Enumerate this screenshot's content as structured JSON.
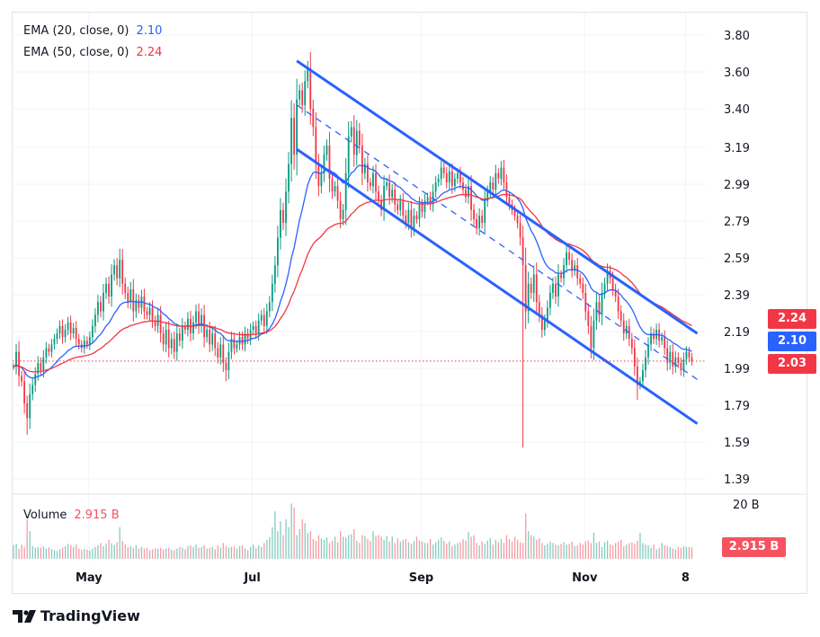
{
  "legend": {
    "ema20": {
      "label": "EMA (20, close, 0)",
      "value": "2.10",
      "color": "#2962ff"
    },
    "ema50": {
      "label": "EMA (50, close, 0)",
      "value": "2.24",
      "color": "#f23645"
    },
    "volume": {
      "label": "Volume",
      "value": "2.915 B",
      "color": "#f7525f"
    }
  },
  "badges": {
    "ema50": "2.24",
    "ema20": "2.10",
    "last_price": "2.03",
    "volume": "2.915 B"
  },
  "brand": {
    "name": "TradingView"
  },
  "colors": {
    "up": "#089981",
    "down": "#f23645",
    "ema20": "#2962ff",
    "ema50": "#f23645",
    "channel": "#2962ff"
  },
  "chart_data": {
    "type": "candlestick",
    "interval": "daily",
    "price_axis": {
      "ticks": [
        "3.80",
        "3.60",
        "3.40",
        "3.19",
        "2.99",
        "2.79",
        "2.59",
        "2.39",
        "2.19",
        "1.99",
        "1.79",
        "1.59",
        "1.39"
      ],
      "range": [
        1.32,
        3.86
      ]
    },
    "volume_axis": {
      "ticks": [
        "20 B"
      ]
    },
    "time_axis": {
      "ticks": [
        "May",
        "Jul",
        "Sep",
        "Nov",
        "8"
      ]
    },
    "grid": true,
    "last_price": 2.03,
    "closes": [
      2.0,
      2.08,
      1.95,
      1.92,
      1.8,
      1.72,
      1.85,
      1.9,
      1.96,
      2.02,
      1.98,
      2.05,
      2.1,
      2.08,
      2.12,
      2.15,
      2.18,
      2.22,
      2.16,
      2.2,
      2.24,
      2.18,
      2.21,
      2.15,
      2.12,
      2.1,
      2.14,
      2.12,
      2.16,
      2.22,
      2.28,
      2.35,
      2.3,
      2.4,
      2.45,
      2.38,
      2.5,
      2.55,
      2.48,
      2.58,
      2.45,
      2.4,
      2.35,
      2.42,
      2.3,
      2.36,
      2.32,
      2.38,
      2.3,
      2.28,
      2.32,
      2.25,
      2.22,
      2.28,
      2.18,
      2.12,
      2.2,
      2.1,
      2.15,
      2.08,
      2.18,
      2.14,
      2.22,
      2.2,
      2.26,
      2.18,
      2.24,
      2.3,
      2.22,
      2.28,
      2.16,
      2.2,
      2.12,
      2.18,
      2.1,
      2.05,
      2.12,
      2.02,
      1.98,
      2.08,
      2.15,
      2.1,
      2.12,
      2.16,
      2.12,
      2.18,
      2.15,
      2.2,
      2.22,
      2.18,
      2.25,
      2.28,
      2.22,
      2.3,
      2.35,
      2.45,
      2.55,
      2.7,
      2.85,
      2.78,
      2.95,
      3.1,
      3.35,
      3.15,
      3.45,
      3.5,
      3.42,
      3.55,
      3.62,
      3.4,
      3.3,
      3.1,
      2.98,
      3.05,
      3.15,
      3.2,
      3.02,
      2.95,
      2.98,
      2.9,
      2.8,
      2.85,
      3.05,
      3.25,
      3.3,
      3.15,
      3.28,
      3.2,
      3.05,
      3.1,
      3.0,
      2.98,
      3.05,
      2.95,
      2.9,
      2.85,
      2.98,
      3.0,
      2.92,
      2.96,
      2.88,
      2.85,
      2.9,
      2.82,
      2.78,
      2.85,
      2.75,
      2.82,
      2.8,
      2.88,
      2.84,
      2.9,
      2.92,
      2.88,
      2.95,
      3.0,
      3.02,
      3.08,
      3.05,
      3.0,
      3.06,
      2.98,
      3.02,
      3.05,
      3.0,
      2.96,
      2.92,
      2.98,
      2.85,
      2.8,
      2.75,
      2.82,
      2.78,
      2.9,
      2.95,
      3.0,
      2.96,
      3.05,
      3.02,
      3.08,
      3.0,
      2.92,
      2.88,
      2.85,
      2.82,
      2.78,
      2.7,
      2.55,
      2.3,
      2.45,
      2.4,
      2.5,
      2.35,
      2.28,
      2.2,
      2.25,
      2.32,
      2.4,
      2.45,
      2.38,
      2.5,
      2.48,
      2.55,
      2.62,
      2.58,
      2.52,
      2.55,
      2.48,
      2.45,
      2.4,
      2.3,
      2.22,
      2.1,
      2.25,
      2.35,
      2.28,
      2.4,
      2.45,
      2.52,
      2.48,
      2.42,
      2.38,
      2.3,
      2.25,
      2.18,
      2.22,
      2.15,
      2.1,
      2.0,
      1.9,
      1.92,
      1.98,
      2.05,
      2.12,
      2.18,
      2.15,
      2.2,
      2.14,
      2.16,
      2.1,
      2.02,
      2.08,
      2.0,
      2.05,
      2.02,
      1.98,
      2.04,
      2.08,
      2.05,
      2.03
    ],
    "extremes": [
      {
        "i": 5,
        "low": 1.63
      },
      {
        "i": 39,
        "high": 2.64
      },
      {
        "i": 78,
        "low": 1.92
      },
      {
        "i": 108,
        "high": 3.66
      },
      {
        "i": 187,
        "low": 1.56
      },
      {
        "i": 229,
        "low": 1.82
      }
    ],
    "volumes_billions": [
      3.5,
      3.8,
      2.5,
      3.6,
      3.0,
      10.0,
      7.0,
      3.2,
      2.8,
      3.0,
      2.8,
      3.1,
      2.6,
      2.9,
      2.4,
      2.2,
      2.0,
      2.4,
      2.8,
      3.2,
      3.8,
      3.5,
      3.0,
      3.6,
      2.6,
      2.2,
      2.5,
      2.3,
      2.1,
      2.6,
      3.0,
      3.4,
      4.0,
      3.2,
      3.8,
      4.8,
      3.9,
      3.5,
      4.2,
      8.0,
      4.5,
      3.6,
      3.0,
      3.2,
      2.8,
      3.4,
      2.6,
      3.0,
      2.6,
      2.8,
      2.2,
      2.4,
      2.6,
      2.6,
      2.8,
      2.4,
      2.6,
      2.8,
      2.3,
      2.2,
      2.6,
      3.0,
      2.8,
      2.4,
      3.2,
      3.4,
      3.0,
      3.6,
      2.8,
      3.0,
      3.4,
      2.6,
      2.8,
      3.0,
      2.4,
      3.4,
      2.8,
      4.0,
      3.2,
      2.8,
      3.0,
      3.2,
      2.6,
      3.2,
      3.4,
      2.6,
      2.2,
      3.0,
      3.6,
      2.8,
      3.4,
      3.0,
      4.0,
      4.8,
      5.5,
      8.0,
      12.0,
      7.0,
      9.5,
      6.0,
      10.0,
      8.0,
      14.0,
      13.0,
      6.0,
      7.5,
      10.0,
      9.0,
      6.5,
      7.0,
      5.0,
      4.6,
      6.0,
      5.2,
      4.8,
      5.4,
      4.0,
      4.6,
      5.6,
      4.2,
      7.0,
      5.6,
      5.4,
      6.0,
      6.2,
      7.5,
      4.5,
      4.0,
      6.0,
      5.8,
      5.0,
      4.5,
      7.0,
      5.8,
      6.0,
      5.6,
      4.8,
      5.8,
      4.4,
      5.6,
      4.0,
      5.2,
      4.4,
      4.8,
      5.0,
      4.2,
      3.8,
      4.4,
      5.6,
      4.6,
      4.4,
      4.0,
      4.0,
      5.0,
      3.6,
      4.2,
      4.8,
      5.4,
      4.6,
      3.8,
      4.4,
      3.2,
      3.6,
      4.0,
      4.2,
      5.0,
      4.6,
      6.8,
      5.6,
      6.0,
      4.0,
      3.4,
      4.4,
      3.8,
      4.6,
      5.2,
      3.6,
      4.8,
      4.2,
      5.0,
      4.0,
      6.0,
      5.0,
      4.4,
      5.6,
      4.8,
      4.2,
      4.0,
      11.5,
      7.0,
      6.0,
      5.6,
      4.8,
      5.2,
      4.0,
      3.4,
      3.8,
      4.4,
      4.0,
      3.6,
      3.4,
      3.8,
      4.2,
      3.6,
      3.8,
      4.4,
      3.2,
      3.4,
      4.0,
      3.6,
      4.4,
      4.6,
      4.0,
      6.6,
      4.0,
      4.4,
      3.0,
      4.2,
      4.6,
      3.6,
      3.4,
      4.0,
      4.4,
      4.8,
      3.2,
      3.6,
      4.0,
      4.2,
      3.8,
      4.6,
      6.6,
      4.0,
      3.6,
      3.4,
      2.8,
      3.6,
      2.4,
      2.8,
      4.0,
      3.4,
      3.2,
      3.0,
      2.6,
      2.4,
      3.0,
      2.8,
      3.2,
      3.0,
      3.0,
      2.915
    ],
    "indicators": [
      {
        "name": "EMA (20, close, 0)",
        "period": 20,
        "last": 2.1
      },
      {
        "name": "EMA (50, close, 0)",
        "period": 50,
        "last": 2.24
      }
    ],
    "channel": {
      "upper": [
        3.66,
        2.18
      ],
      "middle": [
        3.42,
        1.93
      ],
      "lower": [
        3.18,
        1.69
      ]
    }
  }
}
